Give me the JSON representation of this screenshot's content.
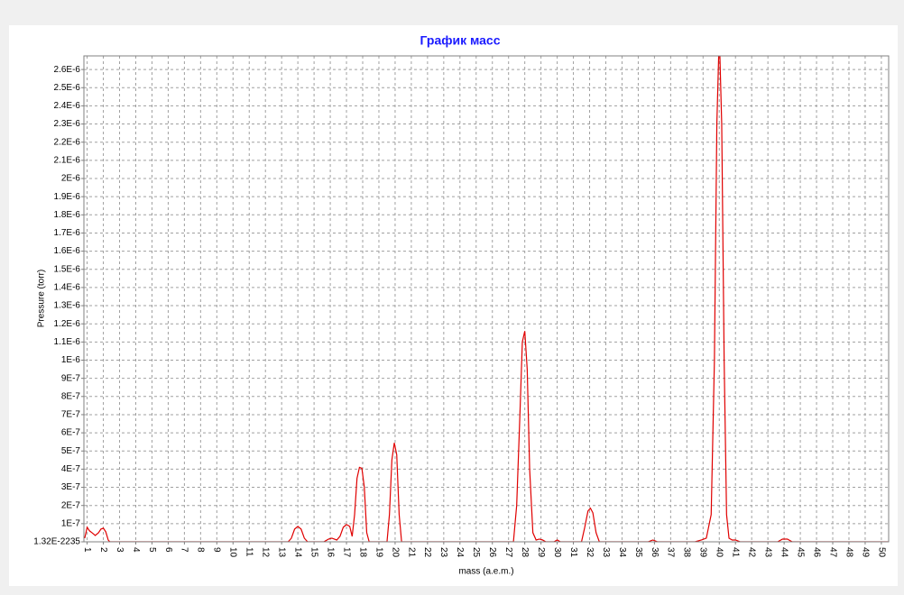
{
  "chart_data": {
    "type": "line",
    "title": "График масс",
    "x_label": "mass (a.e.m.)",
    "y_label": "Pressure (torr)",
    "xlim": [
      0.8,
      50.45
    ],
    "xticks": [
      1,
      2,
      3,
      4,
      5,
      6,
      7,
      8,
      9,
      10,
      11,
      12,
      13,
      14,
      15,
      16,
      17,
      18,
      19,
      20,
      21,
      22,
      23,
      24,
      25,
      26,
      27,
      28,
      29,
      30,
      31,
      32,
      33,
      34,
      35,
      36,
      37,
      38,
      39,
      40,
      41,
      42,
      43,
      44,
      45,
      46,
      47,
      48,
      49,
      50
    ],
    "ylim": [
      0,
      2.675e-06
    ],
    "yticks": [
      {
        "value": 0,
        "label": "1.32E-2235"
      },
      {
        "value": 1e-07,
        "label": "1E-7"
      },
      {
        "value": 2e-07,
        "label": "2E-7"
      },
      {
        "value": 3e-07,
        "label": "3E-7"
      },
      {
        "value": 4e-07,
        "label": "4E-7"
      },
      {
        "value": 5e-07,
        "label": "5E-7"
      },
      {
        "value": 6e-07,
        "label": "6E-7"
      },
      {
        "value": 7e-07,
        "label": "7E-7"
      },
      {
        "value": 8e-07,
        "label": "8E-7"
      },
      {
        "value": 9e-07,
        "label": "9E-7"
      },
      {
        "value": 1e-06,
        "label": "1E-6"
      },
      {
        "value": 1.1e-06,
        "label": "1.1E-6"
      },
      {
        "value": 1.2e-06,
        "label": "1.2E-6"
      },
      {
        "value": 1.3e-06,
        "label": "1.3E-6"
      },
      {
        "value": 1.4e-06,
        "label": "1.4E-6"
      },
      {
        "value": 1.5e-06,
        "label": "1.5E-6"
      },
      {
        "value": 1.6e-06,
        "label": "1.6E-6"
      },
      {
        "value": 1.7e-06,
        "label": "1.7E-6"
      },
      {
        "value": 1.8e-06,
        "label": "1.8E-6"
      },
      {
        "value": 1.9e-06,
        "label": "1.9E-6"
      },
      {
        "value": 2e-06,
        "label": "2E-6"
      },
      {
        "value": 2.1e-06,
        "label": "2.1E-6"
      },
      {
        "value": 2.2e-06,
        "label": "2.2E-6"
      },
      {
        "value": 2.3e-06,
        "label": "2.3E-6"
      },
      {
        "value": 2.4e-06,
        "label": "2.4E-6"
      },
      {
        "value": 2.5e-06,
        "label": "2.5E-6"
      },
      {
        "value": 2.6e-06,
        "label": "2.6E-6"
      }
    ],
    "grid": true,
    "x": [
      0.85,
      1.0,
      1.15,
      1.3,
      1.5,
      1.7,
      1.85,
      2.0,
      2.15,
      2.3,
      2.4,
      13.4,
      13.6,
      13.8,
      14.0,
      14.2,
      14.4,
      14.6,
      15.6,
      15.9,
      16.1,
      16.4,
      16.6,
      16.8,
      17.0,
      17.2,
      17.35,
      17.5,
      17.65,
      17.8,
      17.95,
      18.1,
      18.25,
      18.4,
      19.5,
      19.65,
      19.8,
      19.95,
      20.1,
      20.25,
      20.4,
      27.3,
      27.5,
      27.7,
      27.85,
      28.0,
      28.15,
      28.3,
      28.5,
      28.7,
      28.9,
      29.1,
      29.3,
      29.8,
      30.0,
      30.2,
      31.5,
      31.7,
      31.9,
      32.05,
      32.2,
      32.4,
      32.6,
      35.6,
      35.9,
      36.2,
      38.5,
      38.9,
      39.2,
      39.5,
      39.7,
      39.85,
      40.0,
      40.15,
      40.3,
      40.45,
      40.6,
      40.8,
      41.0,
      41.3,
      43.6,
      43.9,
      44.2,
      44.5,
      50.45
    ],
    "series": [
      {
        "name": "Pressure",
        "color": "#e00000",
        "values": [
          2e-08,
          8e-08,
          6e-08,
          5e-08,
          3.5e-08,
          5e-08,
          7e-08,
          7.5e-08,
          5.5e-08,
          1e-08,
          0,
          0,
          2e-08,
          7e-08,
          8.5e-08,
          7e-08,
          2e-08,
          0,
          0,
          1.5e-08,
          2e-08,
          1e-08,
          3e-08,
          8e-08,
          9.5e-08,
          8.5e-08,
          3e-08,
          1.5e-07,
          3.5e-07,
          4.1e-07,
          4.05e-07,
          3e-07,
          5e-08,
          0,
          0,
          1.5e-07,
          4.5e-07,
          5.45e-07,
          4.8e-07,
          1.5e-07,
          0,
          0,
          2e-07,
          7e-07,
          1.1e-06,
          1.16e-06,
          9.5e-07,
          4e-07,
          5e-08,
          1e-08,
          1.5e-08,
          1e-08,
          0,
          0,
          1e-08,
          0,
          0,
          8e-08,
          1.7e-07,
          1.85e-07,
          1.6e-07,
          5e-08,
          0,
          0,
          1e-08,
          0,
          0,
          1e-08,
          2e-08,
          1.5e-07,
          1e-06,
          2.3e-06,
          2.8e-06,
          2.3e-06,
          1e-06,
          1.5e-07,
          2e-08,
          1e-08,
          1e-08,
          0,
          0,
          1.5e-08,
          1.5e-08,
          0,
          0
        ]
      }
    ]
  }
}
